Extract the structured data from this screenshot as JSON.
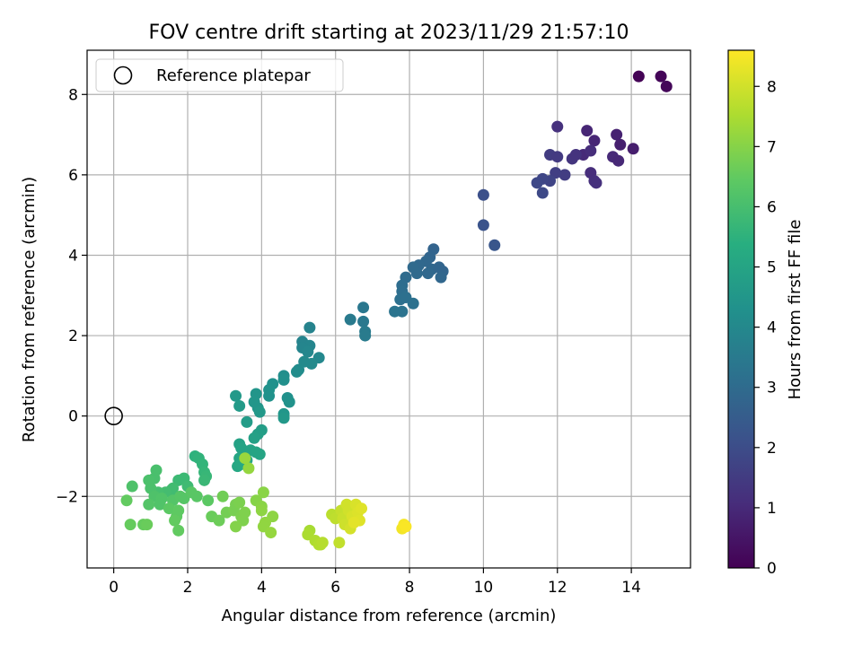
{
  "chart_data": {
    "type": "scatter",
    "title": "FOV centre drift starting at 2023/11/29 21:57:10",
    "xlabel": "Angular distance from reference (arcmin)",
    "ylabel": "Rotation from reference (arcmin)",
    "xlim": [
      -0.72,
      15.6
    ],
    "ylim": [
      -3.78,
      9.1
    ],
    "xticks": [
      "0",
      "2",
      "4",
      "6",
      "8",
      "10",
      "12",
      "14"
    ],
    "xtick_values": [
      0,
      2,
      4,
      6,
      8,
      10,
      12,
      14
    ],
    "yticks": [
      "−2",
      "0",
      "2",
      "4",
      "6",
      "8"
    ],
    "ytick_values": [
      -2,
      0,
      2,
      4,
      6,
      8
    ],
    "grid": true,
    "legend": {
      "position": "top-left",
      "label": "Reference platepar"
    },
    "reference_point": {
      "x": 0,
      "y": 0
    },
    "colorbar": {
      "label": "Hours from first FF file",
      "colormap": "viridis",
      "range": [
        0,
        8.6
      ],
      "ticks": [
        "0",
        "1",
        "2",
        "3",
        "4",
        "5",
        "6",
        "7",
        "8"
      ],
      "tick_values": [
        0,
        1,
        2,
        3,
        4,
        5,
        6,
        7,
        8
      ]
    },
    "points": [
      {
        "x": 14.2,
        "y": 8.45,
        "c": 0.05
      },
      {
        "x": 14.8,
        "y": 8.45,
        "c": 0.1
      },
      {
        "x": 14.95,
        "y": 8.2,
        "c": 0.15
      },
      {
        "x": 12.0,
        "y": 7.2,
        "c": 1.2
      },
      {
        "x": 12.8,
        "y": 7.1,
        "c": 0.9
      },
      {
        "x": 13.6,
        "y": 7.0,
        "c": 0.8
      },
      {
        "x": 14.05,
        "y": 6.65,
        "c": 0.7
      },
      {
        "x": 13.7,
        "y": 6.75,
        "c": 0.75
      },
      {
        "x": 13.0,
        "y": 6.85,
        "c": 0.9
      },
      {
        "x": 12.7,
        "y": 6.5,
        "c": 1.0
      },
      {
        "x": 13.5,
        "y": 6.45,
        "c": 1.0
      },
      {
        "x": 13.65,
        "y": 6.35,
        "c": 0.95
      },
      {
        "x": 12.9,
        "y": 6.6,
        "c": 1.1
      },
      {
        "x": 12.4,
        "y": 6.4,
        "c": 1.3
      },
      {
        "x": 12.5,
        "y": 6.5,
        "c": 1.25
      },
      {
        "x": 11.8,
        "y": 6.5,
        "c": 1.5
      },
      {
        "x": 12.0,
        "y": 6.45,
        "c": 1.45
      },
      {
        "x": 12.9,
        "y": 6.05,
        "c": 1.1
      },
      {
        "x": 13.0,
        "y": 5.85,
        "c": 1.15
      },
      {
        "x": 13.05,
        "y": 5.8,
        "c": 1.2
      },
      {
        "x": 12.2,
        "y": 6.0,
        "c": 1.55
      },
      {
        "x": 11.95,
        "y": 6.05,
        "c": 1.6
      },
      {
        "x": 11.8,
        "y": 5.85,
        "c": 1.75
      },
      {
        "x": 11.6,
        "y": 5.9,
        "c": 1.8
      },
      {
        "x": 11.45,
        "y": 5.8,
        "c": 1.85
      },
      {
        "x": 11.6,
        "y": 5.55,
        "c": 1.9
      },
      {
        "x": 10.0,
        "y": 5.5,
        "c": 2.1
      },
      {
        "x": 10.0,
        "y": 4.75,
        "c": 2.2
      },
      {
        "x": 10.3,
        "y": 4.25,
        "c": 2.3
      },
      {
        "x": 8.65,
        "y": 4.15,
        "c": 2.75
      },
      {
        "x": 8.55,
        "y": 3.95,
        "c": 2.8
      },
      {
        "x": 8.45,
        "y": 3.85,
        "c": 2.85
      },
      {
        "x": 8.25,
        "y": 3.75,
        "c": 2.9
      },
      {
        "x": 8.1,
        "y": 3.7,
        "c": 2.95
      },
      {
        "x": 8.6,
        "y": 3.65,
        "c": 2.85
      },
      {
        "x": 8.8,
        "y": 3.7,
        "c": 2.8
      },
      {
        "x": 8.9,
        "y": 3.6,
        "c": 2.8
      },
      {
        "x": 8.5,
        "y": 3.55,
        "c": 2.9
      },
      {
        "x": 8.85,
        "y": 3.45,
        "c": 2.85
      },
      {
        "x": 8.2,
        "y": 3.55,
        "c": 2.95
      },
      {
        "x": 7.9,
        "y": 3.45,
        "c": 3.0
      },
      {
        "x": 7.8,
        "y": 3.25,
        "c": 3.05
      },
      {
        "x": 7.8,
        "y": 3.1,
        "c": 3.1
      },
      {
        "x": 7.75,
        "y": 2.9,
        "c": 3.15
      },
      {
        "x": 7.9,
        "y": 2.95,
        "c": 3.15
      },
      {
        "x": 8.1,
        "y": 2.8,
        "c": 3.2
      },
      {
        "x": 7.8,
        "y": 2.6,
        "c": 3.25
      },
      {
        "x": 7.6,
        "y": 2.6,
        "c": 3.3
      },
      {
        "x": 6.75,
        "y": 2.7,
        "c": 3.4
      },
      {
        "x": 6.75,
        "y": 2.35,
        "c": 3.45
      },
      {
        "x": 6.8,
        "y": 2.1,
        "c": 3.5
      },
      {
        "x": 6.8,
        "y": 2.0,
        "c": 3.55
      },
      {
        "x": 6.4,
        "y": 2.4,
        "c": 3.5
      },
      {
        "x": 5.3,
        "y": 2.2,
        "c": 3.8
      },
      {
        "x": 5.1,
        "y": 1.85,
        "c": 3.85
      },
      {
        "x": 5.3,
        "y": 1.75,
        "c": 3.9
      },
      {
        "x": 5.1,
        "y": 1.7,
        "c": 3.9
      },
      {
        "x": 5.25,
        "y": 1.6,
        "c": 3.95
      },
      {
        "x": 5.55,
        "y": 1.45,
        "c": 4.0
      },
      {
        "x": 5.15,
        "y": 1.35,
        "c": 4.05
      },
      {
        "x": 5.35,
        "y": 1.3,
        "c": 4.05
      },
      {
        "x": 5.0,
        "y": 1.15,
        "c": 4.1
      },
      {
        "x": 4.95,
        "y": 1.1,
        "c": 4.15
      },
      {
        "x": 4.6,
        "y": 1.0,
        "c": 4.2
      },
      {
        "x": 4.6,
        "y": 0.9,
        "c": 4.25
      },
      {
        "x": 4.3,
        "y": 0.8,
        "c": 4.3
      },
      {
        "x": 4.2,
        "y": 0.65,
        "c": 4.35
      },
      {
        "x": 4.2,
        "y": 0.5,
        "c": 4.35
      },
      {
        "x": 4.7,
        "y": 0.45,
        "c": 4.3
      },
      {
        "x": 4.75,
        "y": 0.35,
        "c": 4.35
      },
      {
        "x": 3.85,
        "y": 0.55,
        "c": 4.45
      },
      {
        "x": 3.8,
        "y": 0.35,
        "c": 4.5
      },
      {
        "x": 3.9,
        "y": 0.2,
        "c": 4.5
      },
      {
        "x": 3.95,
        "y": 0.1,
        "c": 4.55
      },
      {
        "x": 3.3,
        "y": 0.5,
        "c": 4.6
      },
      {
        "x": 3.4,
        "y": 0.25,
        "c": 4.65
      },
      {
        "x": 4.6,
        "y": 0.05,
        "c": 4.5
      },
      {
        "x": 4.6,
        "y": -0.05,
        "c": 4.55
      },
      {
        "x": 3.6,
        "y": -0.15,
        "c": 4.7
      },
      {
        "x": 4.0,
        "y": -0.35,
        "c": 4.75
      },
      {
        "x": 3.9,
        "y": -0.45,
        "c": 4.8
      },
      {
        "x": 3.8,
        "y": -0.55,
        "c": 4.85
      },
      {
        "x": 3.4,
        "y": -0.7,
        "c": 4.9
      },
      {
        "x": 3.45,
        "y": -0.8,
        "c": 4.95
      },
      {
        "x": 3.7,
        "y": -0.85,
        "c": 4.95
      },
      {
        "x": 3.95,
        "y": -0.95,
        "c": 5.0
      },
      {
        "x": 3.85,
        "y": -0.9,
        "c": 5.0
      },
      {
        "x": 3.4,
        "y": -1.05,
        "c": 5.05
      },
      {
        "x": 3.6,
        "y": -1.1,
        "c": 5.1
      },
      {
        "x": 3.35,
        "y": -1.25,
        "c": 5.1
      },
      {
        "x": 3.45,
        "y": -1.2,
        "c": 5.15
      },
      {
        "x": 2.2,
        "y": -1.0,
        "c": 5.5
      },
      {
        "x": 2.3,
        "y": -1.05,
        "c": 5.55
      },
      {
        "x": 2.4,
        "y": -1.2,
        "c": 5.6
      },
      {
        "x": 2.45,
        "y": -1.4,
        "c": 5.65
      },
      {
        "x": 2.5,
        "y": -1.5,
        "c": 5.7
      },
      {
        "x": 2.45,
        "y": -1.6,
        "c": 5.75
      },
      {
        "x": 1.75,
        "y": -1.6,
        "c": 5.8
      },
      {
        "x": 1.9,
        "y": -1.55,
        "c": 5.8
      },
      {
        "x": 2.0,
        "y": -1.75,
        "c": 5.85
      },
      {
        "x": 1.6,
        "y": -1.8,
        "c": 5.9
      },
      {
        "x": 1.55,
        "y": -1.85,
        "c": 5.9
      },
      {
        "x": 1.4,
        "y": -1.9,
        "c": 5.95
      },
      {
        "x": 1.2,
        "y": -1.9,
        "c": 6.0
      },
      {
        "x": 1.1,
        "y": -1.55,
        "c": 6.05
      },
      {
        "x": 1.15,
        "y": -1.35,
        "c": 6.05
      },
      {
        "x": 0.95,
        "y": -1.6,
        "c": 6.1
      },
      {
        "x": 1.0,
        "y": -1.8,
        "c": 6.1
      },
      {
        "x": 0.5,
        "y": -1.75,
        "c": 6.15
      },
      {
        "x": 1.1,
        "y": -2.0,
        "c": 6.15
      },
      {
        "x": 1.3,
        "y": -2.05,
        "c": 6.2
      },
      {
        "x": 1.25,
        "y": -2.2,
        "c": 6.2
      },
      {
        "x": 0.95,
        "y": -2.2,
        "c": 6.25
      },
      {
        "x": 1.6,
        "y": -2.1,
        "c": 6.25
      },
      {
        "x": 1.8,
        "y": -2.0,
        "c": 6.3
      },
      {
        "x": 1.9,
        "y": -2.05,
        "c": 6.3
      },
      {
        "x": 2.1,
        "y": -1.9,
        "c": 6.35
      },
      {
        "x": 2.25,
        "y": -2.0,
        "c": 6.35
      },
      {
        "x": 2.55,
        "y": -2.1,
        "c": 6.4
      },
      {
        "x": 1.5,
        "y": -2.3,
        "c": 6.4
      },
      {
        "x": 1.75,
        "y": -2.35,
        "c": 6.45
      },
      {
        "x": 1.7,
        "y": -2.5,
        "c": 6.45
      },
      {
        "x": 1.65,
        "y": -2.6,
        "c": 6.5
      },
      {
        "x": 1.75,
        "y": -2.85,
        "c": 6.5
      },
      {
        "x": 0.35,
        "y": -2.1,
        "c": 6.5
      },
      {
        "x": 0.45,
        "y": -2.7,
        "c": 6.55
      },
      {
        "x": 0.8,
        "y": -2.7,
        "c": 6.55
      },
      {
        "x": 0.9,
        "y": -2.7,
        "c": 6.6
      },
      {
        "x": 2.65,
        "y": -2.5,
        "c": 6.6
      },
      {
        "x": 2.85,
        "y": -2.6,
        "c": 6.65
      },
      {
        "x": 2.95,
        "y": -2.0,
        "c": 6.7
      },
      {
        "x": 3.05,
        "y": -2.4,
        "c": 6.75
      },
      {
        "x": 3.25,
        "y": -2.35,
        "c": 6.8
      },
      {
        "x": 3.3,
        "y": -2.2,
        "c": 6.8
      },
      {
        "x": 3.4,
        "y": -2.15,
        "c": 6.85
      },
      {
        "x": 3.45,
        "y": -2.5,
        "c": 6.85
      },
      {
        "x": 3.5,
        "y": -2.6,
        "c": 6.9
      },
      {
        "x": 3.55,
        "y": -2.4,
        "c": 6.9
      },
      {
        "x": 3.3,
        "y": -2.75,
        "c": 6.95
      },
      {
        "x": 3.85,
        "y": -2.1,
        "c": 7.0
      },
      {
        "x": 4.05,
        "y": -1.9,
        "c": 7.05
      },
      {
        "x": 4.0,
        "y": -2.25,
        "c": 7.05
      },
      {
        "x": 4.0,
        "y": -2.35,
        "c": 7.1
      },
      {
        "x": 4.3,
        "y": -2.5,
        "c": 7.1
      },
      {
        "x": 4.1,
        "y": -2.65,
        "c": 7.15
      },
      {
        "x": 4.05,
        "y": -2.75,
        "c": 7.15
      },
      {
        "x": 4.25,
        "y": -2.9,
        "c": 7.2
      },
      {
        "x": 3.65,
        "y": -1.3,
        "c": 7.2
      },
      {
        "x": 3.55,
        "y": -1.05,
        "c": 7.25
      },
      {
        "x": 5.3,
        "y": -2.85,
        "c": 7.45
      },
      {
        "x": 5.25,
        "y": -2.95,
        "c": 7.5
      },
      {
        "x": 5.45,
        "y": -3.1,
        "c": 7.55
      },
      {
        "x": 5.55,
        "y": -3.2,
        "c": 7.6
      },
      {
        "x": 5.6,
        "y": -3.2,
        "c": 7.6
      },
      {
        "x": 5.65,
        "y": -3.15,
        "c": 7.65
      },
      {
        "x": 5.9,
        "y": -2.45,
        "c": 7.7
      },
      {
        "x": 6.0,
        "y": -2.55,
        "c": 7.75
      },
      {
        "x": 6.1,
        "y": -3.15,
        "c": 7.8
      },
      {
        "x": 6.15,
        "y": -2.35,
        "c": 7.85
      },
      {
        "x": 6.2,
        "y": -2.55,
        "c": 7.9
      },
      {
        "x": 6.25,
        "y": -2.7,
        "c": 7.95
      },
      {
        "x": 6.3,
        "y": -2.2,
        "c": 8.0
      },
      {
        "x": 6.35,
        "y": -2.35,
        "c": 8.0
      },
      {
        "x": 6.4,
        "y": -2.8,
        "c": 8.05
      },
      {
        "x": 6.45,
        "y": -2.5,
        "c": 8.1
      },
      {
        "x": 6.55,
        "y": -2.2,
        "c": 8.1
      },
      {
        "x": 6.6,
        "y": -2.4,
        "c": 8.15
      },
      {
        "x": 6.65,
        "y": -2.6,
        "c": 8.2
      },
      {
        "x": 6.7,
        "y": -2.3,
        "c": 8.2
      },
      {
        "x": 6.5,
        "y": -2.65,
        "c": 8.25
      },
      {
        "x": 7.8,
        "y": -2.8,
        "c": 8.45
      },
      {
        "x": 7.85,
        "y": -2.7,
        "c": 8.5
      },
      {
        "x": 7.9,
        "y": -2.75,
        "c": 8.55
      }
    ]
  }
}
